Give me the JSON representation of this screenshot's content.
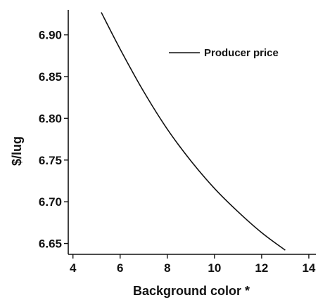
{
  "chart_data": {
    "type": "line",
    "title": "",
    "xlabel": "Background color *",
    "ylabel": "$/lug",
    "xlim": [
      3.8,
      14.3
    ],
    "ylim": [
      6.637,
      6.93
    ],
    "xticks": [
      4,
      6,
      8,
      10,
      12,
      14
    ],
    "yticks": [
      6.65,
      6.7,
      6.75,
      6.8,
      6.85,
      6.9
    ],
    "xtick_labels": [
      "4",
      "6",
      "8",
      "10",
      "12",
      "14"
    ],
    "ytick_labels": [
      "6.65",
      "6.70",
      "6.75",
      "6.80",
      "6.85",
      "6.90"
    ],
    "grid": false,
    "legend_position": "top-right",
    "series": [
      {
        "name": "Producer price",
        "color": "#111111",
        "x": [
          5.2,
          6.0,
          7.0,
          8.0,
          9.0,
          10.0,
          11.0,
          12.0,
          13.0
        ],
        "y": [
          6.927,
          6.883,
          6.832,
          6.787,
          6.749,
          6.716,
          6.688,
          6.663,
          6.642
        ]
      }
    ]
  }
}
